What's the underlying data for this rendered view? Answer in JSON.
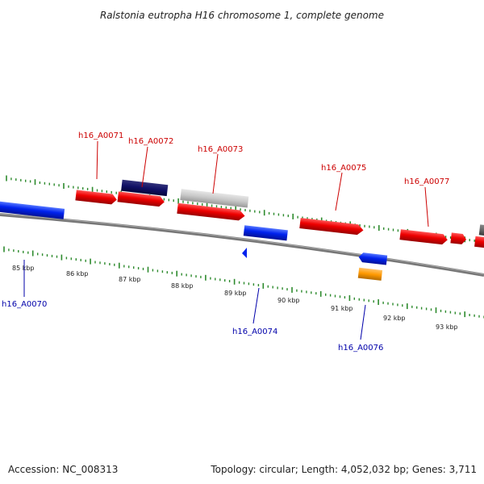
{
  "title": "Ralstonia eutropha H16 chromosome 1, complete genome",
  "footer": {
    "accession": "Accession: NC_008313",
    "summary": "Topology: circular; Length: 4,052,032 bp; Genes: 3,711"
  },
  "colors": {
    "forward_label": "#cc0000",
    "reverse_label": "#0000aa",
    "tick": "#2e8b2e",
    "backbone": "#888888"
  },
  "scale_labels": [
    "85 kbp",
    "86 kbp",
    "87 kbp",
    "88 kbp",
    "89 kbp",
    "90 kbp",
    "91 kbp",
    "92 kbp",
    "93 kbp"
  ],
  "forward_gene_labels": [
    "h16_A0071",
    "h16_A0072",
    "h16_A0073",
    "h16_A0075",
    "h16_A0077"
  ],
  "reverse_gene_labels": [
    "h16_A0070",
    "h16_A0074",
    "h16_A0076"
  ]
}
